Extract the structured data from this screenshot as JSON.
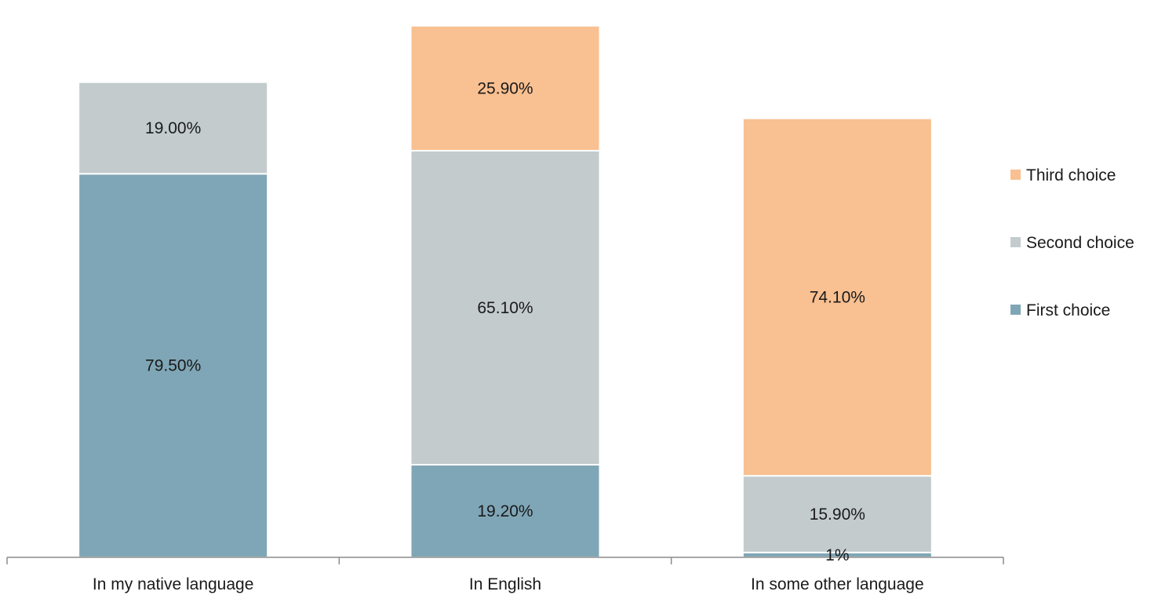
{
  "chart_data": {
    "type": "bar",
    "stacked": true,
    "title": "",
    "xlabel": "",
    "ylabel": "",
    "categories": [
      "In my native language",
      "In English",
      "In some other language"
    ],
    "series": [
      {
        "name": "First choice",
        "color": "#7fa6b6",
        "values": [
          79.5,
          19.2,
          1
        ],
        "labels": [
          "79.50%",
          "19.20%",
          "1%"
        ]
      },
      {
        "name": "Second choice",
        "color": "#c3cbcd",
        "values": [
          19.0,
          65.1,
          15.9
        ],
        "labels": [
          "19.00%",
          "65.10%",
          "15.90%"
        ]
      },
      {
        "name": "Third choice",
        "color": "#f9c091",
        "values": [
          null,
          25.9,
          74.1
        ],
        "labels": [
          null,
          "25.90%",
          "74.10%"
        ]
      }
    ],
    "ylim": [
      0,
      110
    ],
    "grid": false,
    "legend_position": "right"
  }
}
